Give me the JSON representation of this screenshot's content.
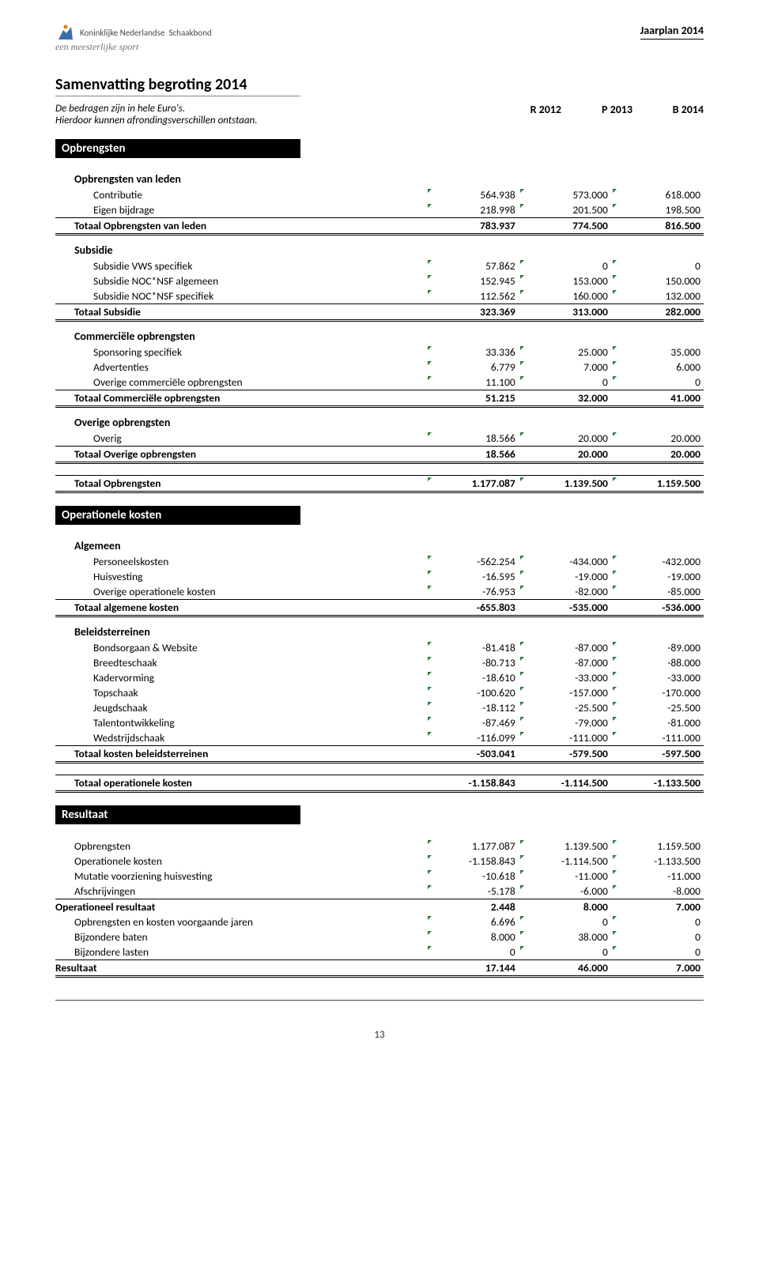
{
  "header": {
    "org_line1": "Koninklijke Nederlandse",
    "org_line2": "Schaakbond",
    "org_subtitle": "een meesterlijke sport",
    "jaarplan": "Jaarplan 2014"
  },
  "title": "Samenvatting begroting 2014",
  "note_line1": "De bedragen zijn in hele Euro's.",
  "note_line2": "Hierdoor kunnen afrondingsverschillen ontstaan.",
  "years": {
    "y1": "R 2012",
    "y2": "P 2013",
    "y3": "B 2014"
  },
  "sections": {
    "opbrengsten": "Opbrengsten",
    "operationele": "Operationele kosten",
    "resultaat": "Resultaat"
  },
  "sub_heads": {
    "opbr_leden": "Opbrengsten van leden",
    "subsidie": "Subsidie",
    "commercieel": "Commerciële opbrengsten",
    "overige_opbr": "Overige opbrengsten",
    "algemeen": "Algemeen",
    "beleid": "Beleidsterreinen"
  },
  "rows": {
    "contributie": {
      "label": "Contributie",
      "v": [
        "564.938",
        "573.000",
        "618.000"
      ]
    },
    "eigen_bijdrage": {
      "label": "Eigen bijdrage",
      "v": [
        "218.998",
        "201.500",
        "198.500"
      ]
    },
    "tot_opbr_leden": {
      "label": "Totaal Opbrengsten van leden",
      "v": [
        "783.937",
        "774.500",
        "816.500"
      ]
    },
    "sub_vws": {
      "label": "Subsidie VWS specifiek",
      "v": [
        "57.862",
        "0",
        "0"
      ]
    },
    "sub_nocnsf_alg": {
      "label": "Subsidie NOC*NSF algemeen",
      "v": [
        "152.945",
        "153.000",
        "150.000"
      ]
    },
    "sub_nocnsf_spec": {
      "label": "Subsidie NOC*NSF specifiek",
      "v": [
        "112.562",
        "160.000",
        "132.000"
      ]
    },
    "tot_subsidie": {
      "label": "Totaal Subsidie",
      "v": [
        "323.369",
        "313.000",
        "282.000"
      ]
    },
    "sponsoring": {
      "label": "Sponsoring specifiek",
      "v": [
        "33.336",
        "25.000",
        "35.000"
      ]
    },
    "advertenties": {
      "label": "Advertenties",
      "v": [
        "6.779",
        "7.000",
        "6.000"
      ]
    },
    "overige_comm": {
      "label": "Overige commerciële opbrengsten",
      "v": [
        "11.100",
        "0",
        "0"
      ]
    },
    "tot_comm": {
      "label": "Totaal Commerciële opbrengsten",
      "v": [
        "51.215",
        "32.000",
        "41.000"
      ]
    },
    "overig": {
      "label": "Overig",
      "v": [
        "18.566",
        "20.000",
        "20.000"
      ]
    },
    "tot_overig": {
      "label": "Totaal Overige opbrengsten",
      "v": [
        "18.566",
        "20.000",
        "20.000"
      ]
    },
    "tot_opbr": {
      "label": "Totaal Opbrengsten",
      "v": [
        "1.177.087",
        "1.139.500",
        "1.159.500"
      ]
    },
    "personeel": {
      "label": "Personeelskosten",
      "v": [
        "-562.254",
        "-434.000",
        "-432.000"
      ]
    },
    "huisvesting": {
      "label": "Huisvesting",
      "v": [
        "-16.595",
        "-19.000",
        "-19.000"
      ]
    },
    "overige_oper": {
      "label": "Overige operationele kosten",
      "v": [
        "-76.953",
        "-82.000",
        "-85.000"
      ]
    },
    "tot_algemeen": {
      "label": "Totaal algemene kosten",
      "v": [
        "-655.803",
        "-535.000",
        "-536.000"
      ]
    },
    "bondsorgaan": {
      "label": "Bondsorgaan & Website",
      "v": [
        "-81.418",
        "-87.000",
        "-89.000"
      ]
    },
    "breedte": {
      "label": "Breedteschaak",
      "v": [
        "-80.713",
        "-87.000",
        "-88.000"
      ]
    },
    "kader": {
      "label": "Kadervorming",
      "v": [
        "-18.610",
        "-33.000",
        "-33.000"
      ]
    },
    "topschaak": {
      "label": "Topschaak",
      "v": [
        "-100.620",
        "-157.000",
        "-170.000"
      ]
    },
    "jeugd": {
      "label": "Jeugdschaak",
      "v": [
        "-18.112",
        "-25.500",
        "-25.500"
      ]
    },
    "talent": {
      "label": "Talentontwikkeling",
      "v": [
        "-87.469",
        "-79.000",
        "-81.000"
      ]
    },
    "wedstrijd": {
      "label": "Wedstrijdschaak",
      "v": [
        "-116.099",
        "-111.000",
        "-111.000"
      ]
    },
    "tot_beleid": {
      "label": "Totaal kosten beleidsterreinen",
      "v": [
        "-503.041",
        "-579.500",
        "-597.500"
      ]
    },
    "tot_oper": {
      "label": "Totaal operationele kosten",
      "v": [
        "-1.158.843",
        "-1.114.500",
        "-1.133.500"
      ]
    },
    "res_opbr": {
      "label": "Opbrengsten",
      "v": [
        "1.177.087",
        "1.139.500",
        "1.159.500"
      ]
    },
    "res_oper": {
      "label": "Operationele kosten",
      "v": [
        "-1.158.843",
        "-1.114.500",
        "-1.133.500"
      ]
    },
    "mutatie": {
      "label": "Mutatie voorziening huisvesting",
      "v": [
        "-10.618",
        "-11.000",
        "-11.000"
      ]
    },
    "afschr": {
      "label": "Afschrijvingen",
      "v": [
        "-5.178",
        "-6.000",
        "-8.000"
      ]
    },
    "oper_res": {
      "label": "Operationeel resultaat",
      "v": [
        "2.448",
        "8.000",
        "7.000"
      ]
    },
    "voorgaande": {
      "label": "Opbrengsten en kosten voorgaande jaren",
      "v": [
        "6.696",
        "0",
        "0"
      ]
    },
    "bijz_baten": {
      "label": "Bijzondere baten",
      "v": [
        "8.000",
        "38.000",
        "0"
      ]
    },
    "bijz_lasten": {
      "label": "Bijzondere lasten",
      "v": [
        "0",
        "0",
        "0"
      ]
    },
    "resultaat": {
      "label": "Resultaat",
      "v": [
        "17.144",
        "46.000",
        "7.000"
      ]
    }
  },
  "page_number": "13",
  "colors": {
    "tick": "#2a7d3f",
    "bar_bg": "#000000"
  }
}
